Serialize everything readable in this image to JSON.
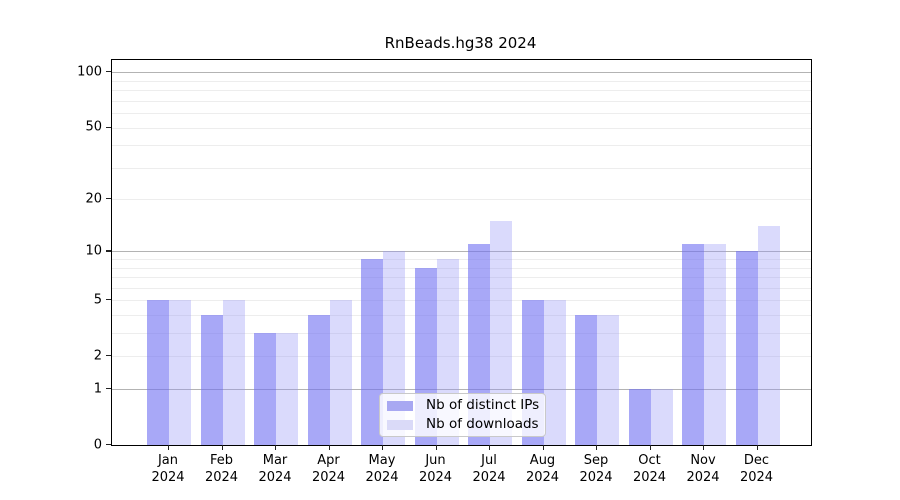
{
  "page": {
    "title": "RnBeads.hg38 2024"
  },
  "chart_data": {
    "type": "bar",
    "title": "RnBeads.hg38 2024",
    "categories": [
      "Jan",
      "Feb",
      "Mar",
      "Apr",
      "May",
      "Jun",
      "Jul",
      "Aug",
      "Sep",
      "Oct",
      "Nov",
      "Dec"
    ],
    "category_year": "2024",
    "series": [
      {
        "name": "Nb of distinct IPs",
        "bar_color": "rgba(110,110,242,0.60)",
        "swatch_color": "#a8a8f2",
        "values": [
          5,
          4,
          3,
          4,
          9,
          8,
          11,
          5,
          4,
          1,
          11,
          10
        ]
      },
      {
        "name": "Nb of downloads",
        "bar_color": "rgba(150,150,245,0.35)",
        "swatch_color": "#dadaf8",
        "values": [
          5,
          5,
          3,
          5,
          10,
          9,
          15,
          5,
          4,
          1,
          11,
          14
        ]
      }
    ],
    "xlabel": "",
    "ylabel": "",
    "y_axis": {
      "scale": "log10(1+value)",
      "tick_values": [
        100,
        50,
        20,
        10,
        5,
        2,
        1,
        0
      ],
      "major_gridlines": [
        1,
        10,
        100
      ],
      "minor_gridlines": [
        2,
        3,
        4,
        5,
        6,
        7,
        8,
        9,
        20,
        30,
        40,
        50,
        60,
        70,
        80,
        90
      ],
      "ylim_top_value": 115
    },
    "grid": "on",
    "legend": {
      "position": "lower center",
      "entries": [
        "Nb of distinct IPs",
        "Nb of downloads"
      ]
    },
    "colors": {
      "major_gridline": "#b3b3b3",
      "minor_gridline": "#ededed",
      "axis_border": "#000000",
      "background": "#ffffff"
    }
  }
}
